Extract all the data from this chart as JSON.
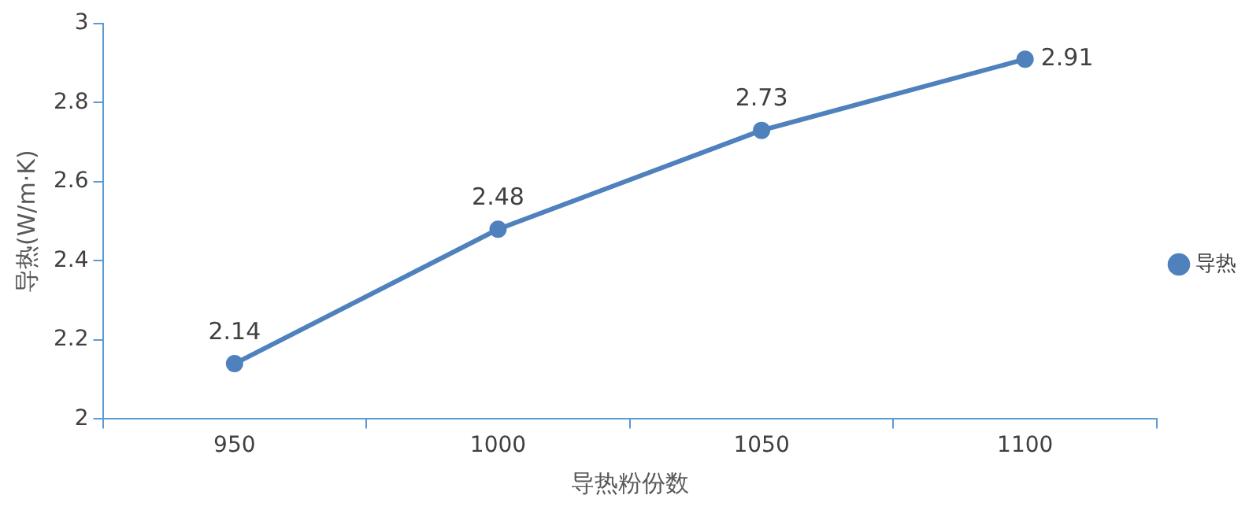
{
  "chart_data": {
    "type": "line",
    "xlabel": "导热粉份数",
    "ylabel": "导热(W/m·K)",
    "categories": [
      "950",
      "1000",
      "1050",
      "1100"
    ],
    "series": [
      {
        "name": "导热",
        "color": "#4f81bd",
        "values": [
          2.14,
          2.48,
          2.73,
          2.91
        ]
      }
    ],
    "ylim": [
      2,
      3
    ],
    "yticks": [
      2,
      2.2,
      2.4,
      2.6,
      2.8,
      3
    ],
    "data_labels": true,
    "legend": "right",
    "marker": "circle"
  }
}
